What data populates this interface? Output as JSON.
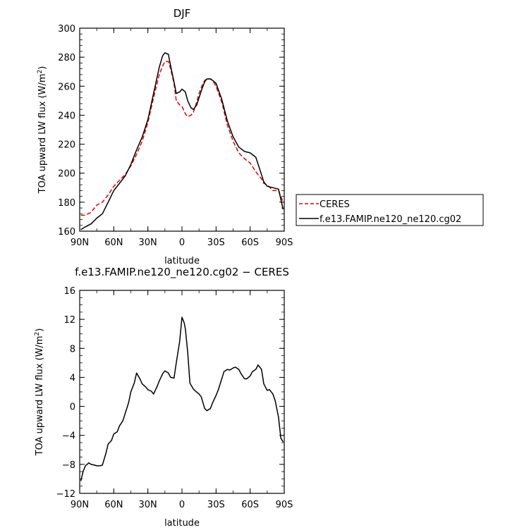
{
  "chart_data": [
    {
      "type": "line",
      "title": "DJF",
      "xlabel": "latitude",
      "ylabel": "TOA upward LW flux (W/m²)",
      "ylabel_parts": [
        "TOA upward LW flux (W/m",
        "2",
        ")"
      ],
      "xlim": [
        -90,
        90
      ],
      "ylim": [
        160,
        300
      ],
      "xticks": [
        -90,
        -60,
        -30,
        0,
        30,
        60,
        90
      ],
      "xtick_labels": [
        "90N",
        "60N",
        "30N",
        "0",
        "30S",
        "60S",
        "90S"
      ],
      "yticks": [
        160,
        180,
        200,
        220,
        240,
        260,
        280,
        300
      ],
      "ytick_labels": [
        "160",
        "180",
        "200",
        "220",
        "240",
        "260",
        "280",
        "300"
      ],
      "legend": {
        "position": "right"
      },
      "series": [
        {
          "name": "CERES",
          "color": "#e00000",
          "dash": "dashed",
          "x": [
            -89,
            -85,
            -80,
            -75,
            -70,
            -65,
            -60,
            -55,
            -50,
            -45,
            -40,
            -35,
            -30,
            -25,
            -20,
            -17,
            -15,
            -12,
            -10,
            -7,
            -5,
            -2,
            0,
            3,
            5,
            8,
            10,
            13,
            15,
            18,
            20,
            22,
            25,
            27,
            30,
            35,
            40,
            45,
            50,
            55,
            60,
            65,
            70,
            72,
            75,
            80,
            85,
            89
          ],
          "values": [
            171,
            171,
            173,
            178,
            180,
            185,
            191,
            195,
            199,
            205,
            213,
            222,
            235,
            252,
            268,
            274,
            277,
            277,
            272,
            262,
            250,
            247,
            246,
            241,
            239,
            240,
            242,
            249,
            255,
            261,
            264,
            265,
            265,
            264,
            260,
            249,
            233,
            222,
            214,
            210,
            207,
            201,
            196,
            193,
            192,
            188,
            188,
            180
          ]
        },
        {
          "name": "f.e13.FAMIP.ne120_ne120.cg02",
          "color": "#000000",
          "dash": "solid",
          "x": [
            -89,
            -85,
            -80,
            -75,
            -70,
            -65,
            -60,
            -55,
            -50,
            -45,
            -40,
            -35,
            -30,
            -25,
            -20,
            -17,
            -15,
            -12,
            -10,
            -7,
            -5,
            -2,
            0,
            3,
            5,
            8,
            10,
            13,
            15,
            18,
            20,
            22,
            25,
            27,
            30,
            35,
            40,
            45,
            50,
            55,
            60,
            65,
            70,
            72,
            75,
            80,
            85,
            89
          ],
          "values": [
            161,
            163,
            165,
            169,
            172,
            180,
            188,
            193,
            198,
            206,
            216,
            225,
            237,
            255,
            273,
            281,
            283,
            282,
            274,
            263,
            255,
            256,
            258,
            256,
            250,
            245,
            244,
            247,
            252,
            259,
            263,
            265,
            265,
            264,
            262,
            251,
            236,
            225,
            218,
            215,
            214,
            211,
            199,
            194,
            191,
            190,
            189,
            175
          ]
        }
      ]
    },
    {
      "type": "line",
      "title": "f.e13.FAMIP.ne120_ne120.cg02 − CERES",
      "xlabel": "latitude",
      "ylabel": "TOA upward LW flux (W/m²)",
      "ylabel_parts": [
        "TOA upward LW flux (W/m",
        "2",
        ")"
      ],
      "xlim": [
        -90,
        90
      ],
      "ylim": [
        -12,
        16
      ],
      "xticks": [
        -90,
        -60,
        -30,
        0,
        30,
        60,
        90
      ],
      "xtick_labels": [
        "90N",
        "60N",
        "30N",
        "0",
        "30S",
        "60S",
        "90S"
      ],
      "yticks": [
        -12,
        -8,
        -4,
        0,
        4,
        8,
        12,
        16
      ],
      "ytick_labels": [
        "−12",
        "−8",
        "−4",
        "0",
        "4",
        "8",
        "12",
        "16"
      ],
      "series": [
        {
          "name": "f.e13.FAMIP.ne120_ne120.cg02 − CERES",
          "color": "#000000",
          "dash": "solid",
          "x": [
            -89,
            -87,
            -85,
            -82,
            -80,
            -77,
            -75,
            -72,
            -70,
            -67,
            -65,
            -62,
            -60,
            -57,
            -55,
            -52,
            -50,
            -47,
            -45,
            -42,
            -40,
            -37,
            -35,
            -32,
            -30,
            -27,
            -25,
            -22,
            -20,
            -17,
            -15,
            -12,
            -10,
            -7,
            -5,
            -2,
            0,
            2,
            3,
            5,
            7,
            10,
            12,
            15,
            17,
            20,
            22,
            25,
            27,
            30,
            32,
            35,
            37,
            40,
            42,
            45,
            47,
            50,
            52,
            55,
            57,
            60,
            62,
            65,
            67,
            70,
            72,
            75,
            77,
            80,
            82,
            85,
            87,
            89
          ],
          "values": [
            -10.3,
            -9,
            -8.2,
            -7.8,
            -8,
            -8.1,
            -8.2,
            -8.2,
            -8.1,
            -6.5,
            -5.2,
            -4.7,
            -3.8,
            -3.5,
            -2.7,
            -2,
            -1,
            0.5,
            2,
            3.2,
            4.6,
            3.8,
            3.1,
            2.7,
            2.3,
            2.1,
            1.7,
            2.7,
            3.5,
            4.5,
            4.9,
            4.6,
            4,
            3.9,
            6,
            9,
            12.3,
            11.5,
            10.7,
            7.5,
            3.2,
            2.4,
            2.1,
            1.7,
            1.3,
            -0.3,
            -0.6,
            -0.3,
            0.5,
            1.5,
            2.3,
            3.8,
            4.8,
            5.1,
            5,
            5.3,
            5.4,
            5.1,
            4.5,
            3.8,
            3.8,
            4.2,
            4.8,
            5.1,
            5.7,
            5.1,
            3.1,
            2.2,
            2.3,
            1.7,
            0.8,
            -1.5,
            -4.4,
            -4.9
          ]
        }
      ]
    }
  ]
}
